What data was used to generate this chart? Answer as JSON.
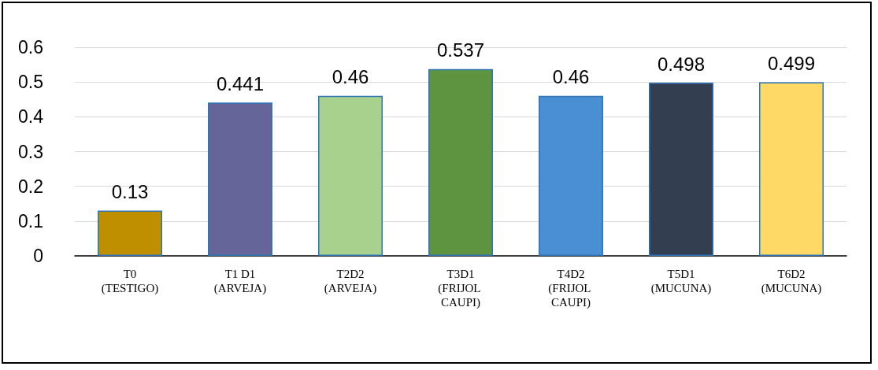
{
  "chart_data": {
    "type": "bar",
    "categories": [
      "T0 (TESTIGO)",
      "T1 D1 (ARVEJA)",
      "T2D2 (ARVEJA)",
      "T3D1 (FRIJOL CAUPI)",
      "T4D2 (FRIJOL CAUPI)",
      "T5D1 (MUCUNA)",
      "T6D2 (MUCUNA)"
    ],
    "values": [
      0.13,
      0.441,
      0.46,
      0.537,
      0.46,
      0.498,
      0.499
    ],
    "colors": [
      "#bf8f00",
      "#65659a",
      "#a9d18e",
      "#5e9440",
      "#4a8fd4",
      "#333f50",
      "#ffd966"
    ],
    "ylim": [
      0,
      0.6
    ],
    "yticks": [
      0,
      0.1,
      0.2,
      0.3,
      0.4,
      0.5,
      0.6
    ],
    "grid": "y",
    "data_labels": true
  }
}
